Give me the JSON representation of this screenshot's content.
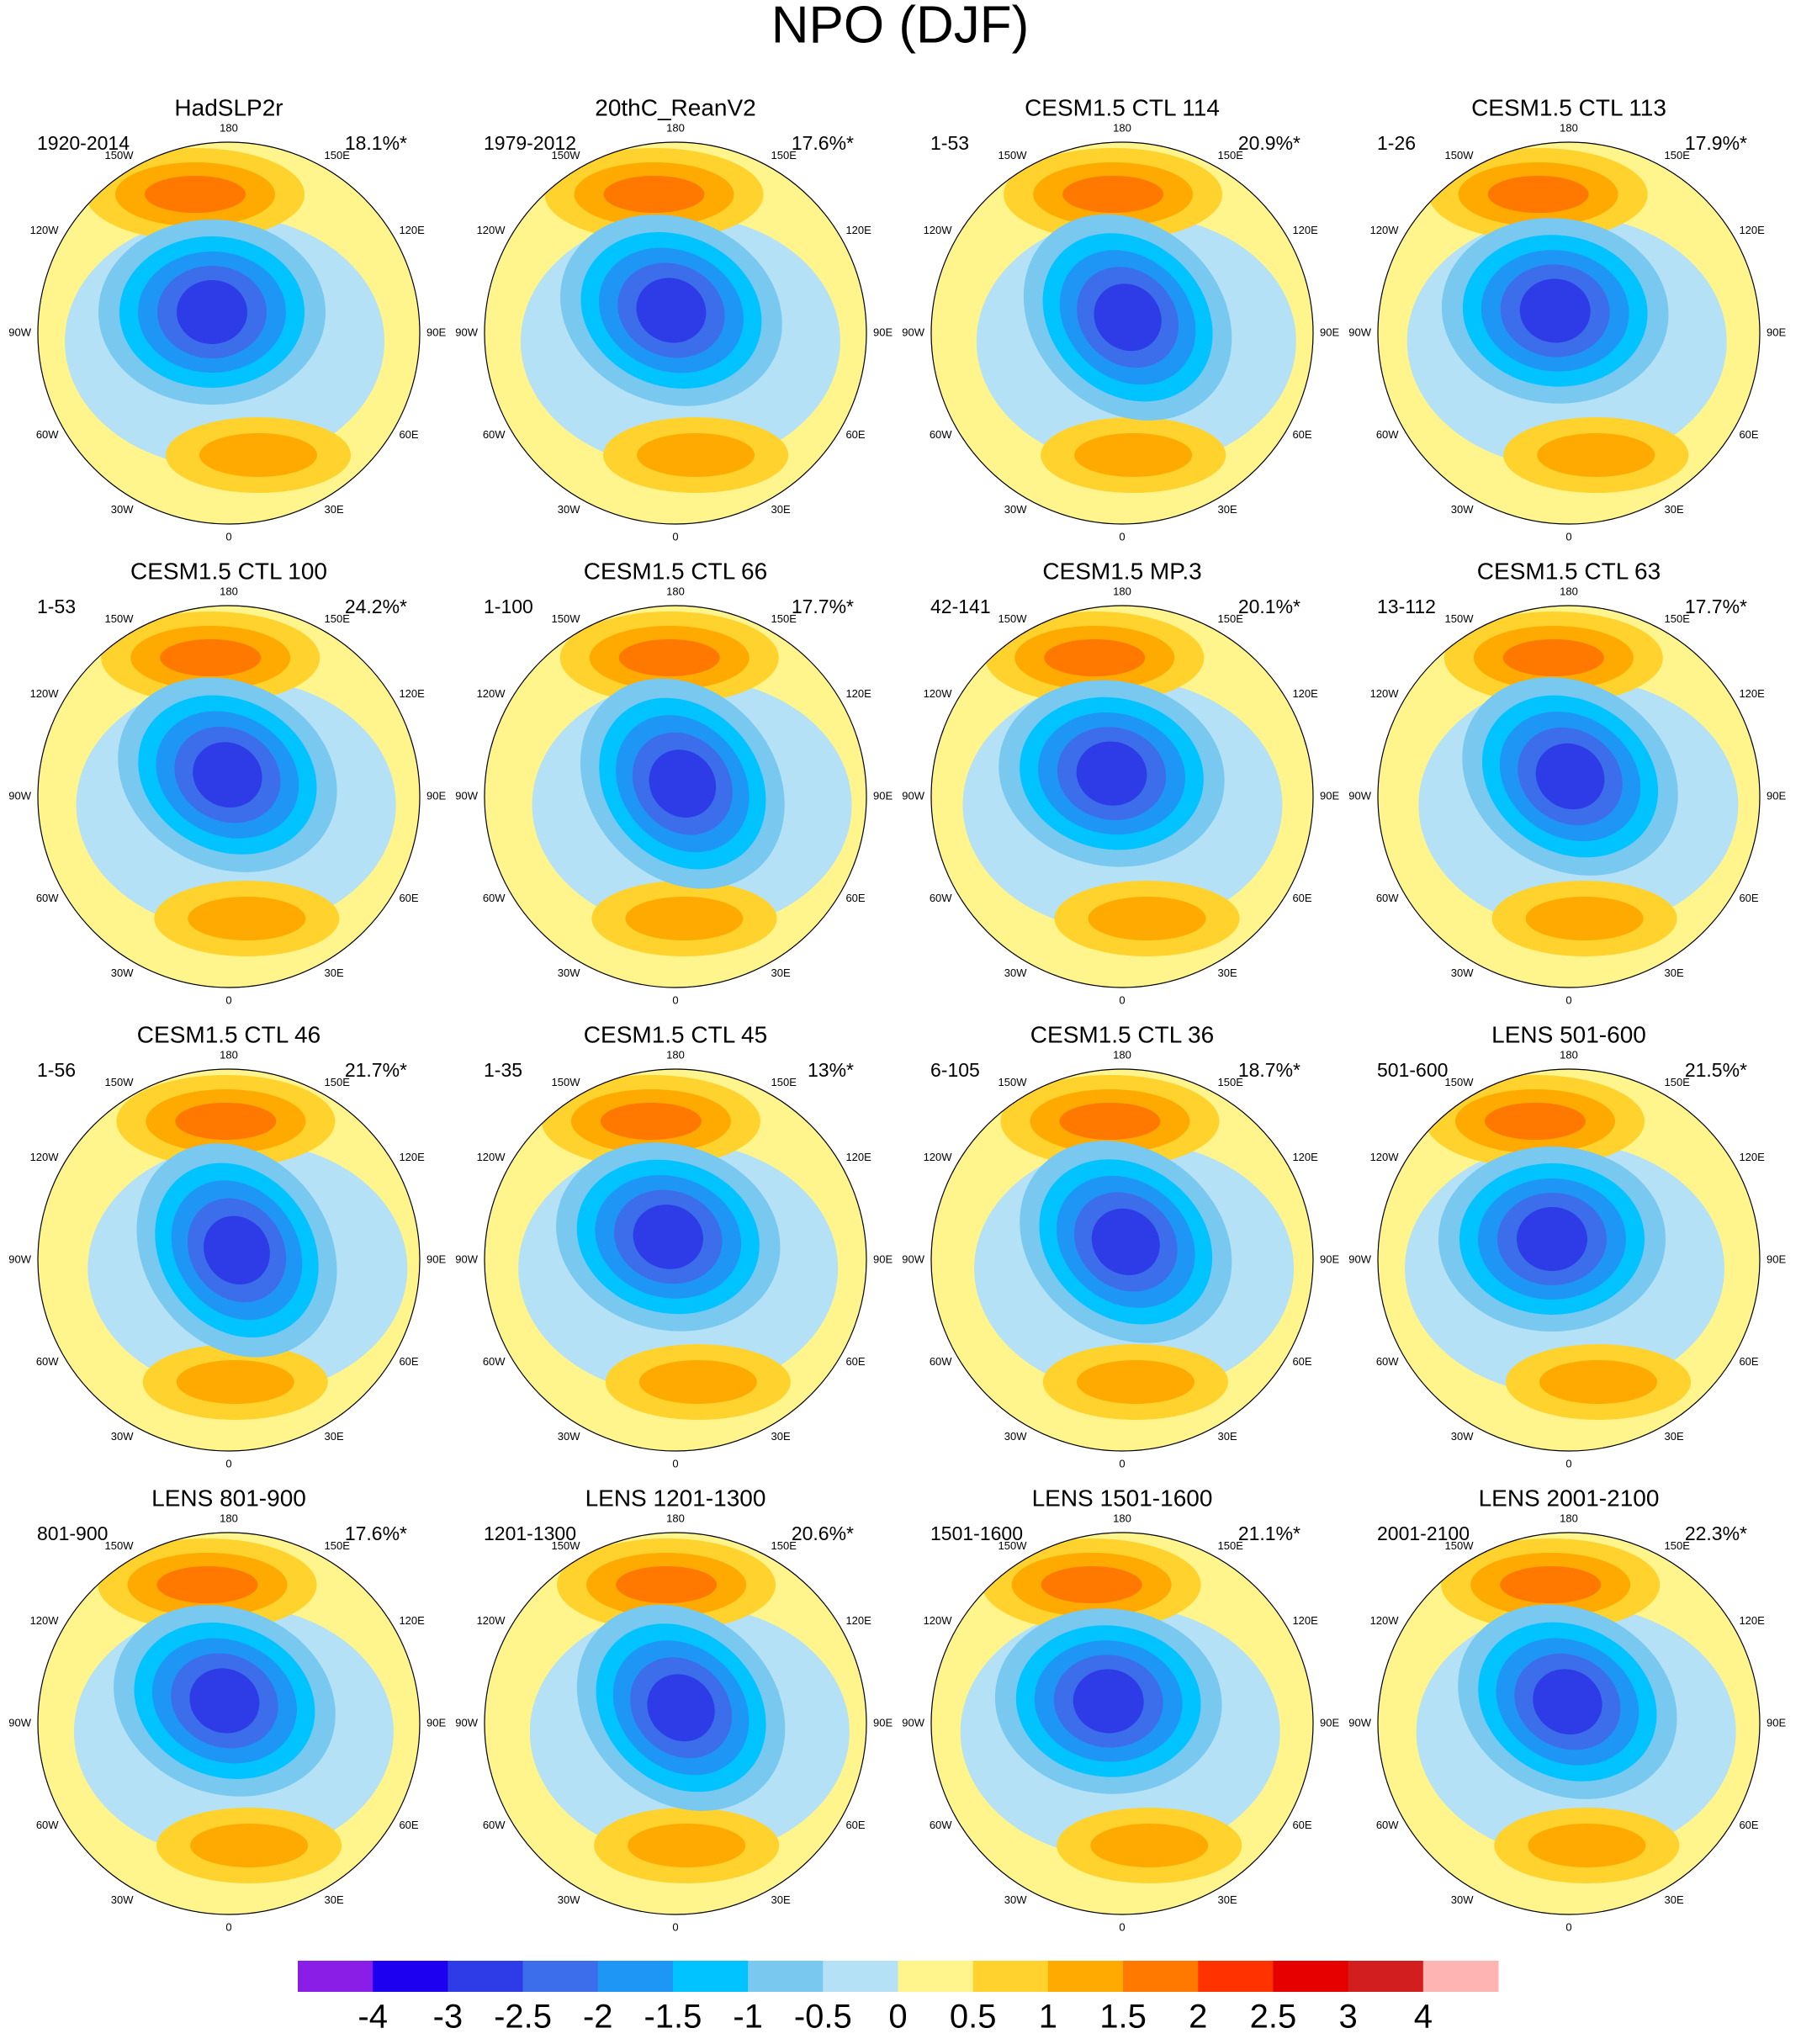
{
  "chart_data": {
    "type": "polar-map-grid",
    "title": "NPO (DJF)",
    "lon_labels": [
      "180",
      "150E",
      "120E",
      "90E",
      "60E",
      "30E",
      "0",
      "30W",
      "60W",
      "90W",
      "120W",
      "150W"
    ],
    "panels": [
      {
        "title": "HadSLP2r",
        "period": "1920-2014",
        "variance": "18.1%*"
      },
      {
        "title": "20thC_ReanV2",
        "period": "1979-2012",
        "variance": "17.6%*"
      },
      {
        "title": "CESM1.5 CTL 114",
        "period": "1-53",
        "variance": "20.9%*"
      },
      {
        "title": "CESM1.5 CTL 113",
        "period": "1-26",
        "variance": "17.9%*"
      },
      {
        "title": "CESM1.5 CTL 100",
        "period": "1-53",
        "variance": "24.2%*"
      },
      {
        "title": "CESM1.5 CTL 66",
        "period": "1-100",
        "variance": "17.7%*"
      },
      {
        "title": "CESM1.5 MP.3",
        "period": "42-141",
        "variance": "20.1%*"
      },
      {
        "title": "CESM1.5 CTL 63",
        "period": "13-112",
        "variance": "17.7%*"
      },
      {
        "title": "CESM1.5 CTL 46",
        "period": "1-56",
        "variance": "21.7%*"
      },
      {
        "title": "CESM1.5 CTL 45",
        "period": "1-35",
        "variance": "13%*"
      },
      {
        "title": "CESM1.5 CTL 36",
        "period": "6-105",
        "variance": "18.7%*"
      },
      {
        "title": "LENS 501-600",
        "period": "501-600",
        "variance": "21.5%*"
      },
      {
        "title": "LENS 801-900",
        "period": "801-900",
        "variance": "17.6%*"
      },
      {
        "title": "LENS 1201-1300",
        "period": "1201-1300",
        "variance": "20.6%*"
      },
      {
        "title": "LENS 1501-1600",
        "period": "1501-1600",
        "variance": "21.1%*"
      },
      {
        "title": "LENS 2001-2100",
        "period": "2001-2100",
        "variance": "22.3%*"
      }
    ],
    "levels": [
      -4,
      -3,
      -2.5,
      -2,
      -1.5,
      -1,
      -0.5,
      0,
      0.5,
      1,
      1.5,
      2,
      2.5,
      3,
      4
    ],
    "colors": [
      "#8a1ee6",
      "#1e00f0",
      "#2d3ce6",
      "#3c6eeb",
      "#1e96f5",
      "#00c3ff",
      "#78c8f0",
      "#b4e1f5",
      "#fff58c",
      "#ffd22d",
      "#ffaa00",
      "#ff7800",
      "#ff3200",
      "#e60000",
      "#d21e1e",
      "#ffb4b4"
    ]
  }
}
